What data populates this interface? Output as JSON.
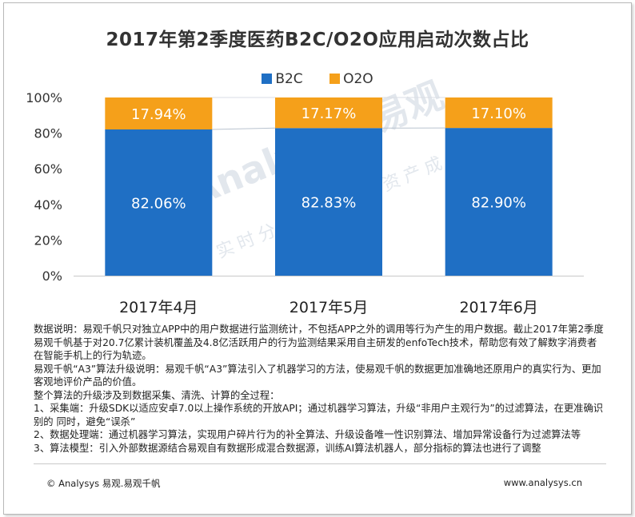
{
  "chart_data": {
    "type": "bar",
    "stacked": true,
    "title": "2017年第2季度医药B2C/O2O应用启动次数占比",
    "categories": [
      "2017年4月",
      "2017年5月",
      "2017年6月"
    ],
    "series": [
      {
        "name": "B2C",
        "values": [
          82.06,
          82.83,
          82.9
        ],
        "labels": [
          "82.06%",
          "82.83%",
          "82.90%"
        ],
        "color": "#1f6fc4"
      },
      {
        "name": "O2O",
        "values": [
          17.94,
          17.17,
          17.1
        ],
        "labels": [
          "17.94%",
          "17.17%",
          "17.10%"
        ],
        "color": "#f5a01a"
      }
    ],
    "ylim": [
      0,
      100
    ],
    "yticks": [
      0,
      20,
      40,
      60,
      80,
      100
    ],
    "ytick_labels": [
      "0%",
      "20%",
      "40%",
      "60%",
      "80%",
      "100%"
    ],
    "legend_position": "top-center",
    "grid": false
  },
  "watermark": {
    "brand": "Analysys 易观",
    "slogan": "实时分析驱动用户资产成长"
  },
  "notes": [
    "数据说明：易观千帆只对独立APP中的用户数据进行监测统计，不包括APP之外的调用等行为产生的用户数据。截止2017年第2季度易观千帆基于对20.7亿累计装机覆盖及4.8亿活跃用户的行为监测结果采用自主研发的enfoTech技术，帮助您有效了解数字消费者在智能手机上的行为轨迹。",
    "易观千帆“A3”算法升级说明：易观千帆“A3”算法引入了机器学习的方法，使易观千帆的数据更加准确地还原用户的真实行为、更加客观地评价产品的价值。",
    "整个算法的升级涉及到数据采集、清洗、计算的全过程：",
    "1、采集端：升级SDK以适应安卓7.0以上操作系统的开放API；通过机器学习算法，升级“非用户主观行为”的过滤算法，在更准确识别的 同时，避免“误杀”",
    "2、数据处理端：通过机器学习算法，实现用户碎片行为的补全算法、升级设备唯一性识别算法、增加异常设备行为过滤算法等",
    "3、算法模型：引入外部数据源结合易观自有数据形成混合数据源，训练AI算法机器人，部分指标的算法也进行了调整"
  ],
  "footer": {
    "left": "© Analysys 易观.易观千帆",
    "right": "www.analysys.cn"
  }
}
